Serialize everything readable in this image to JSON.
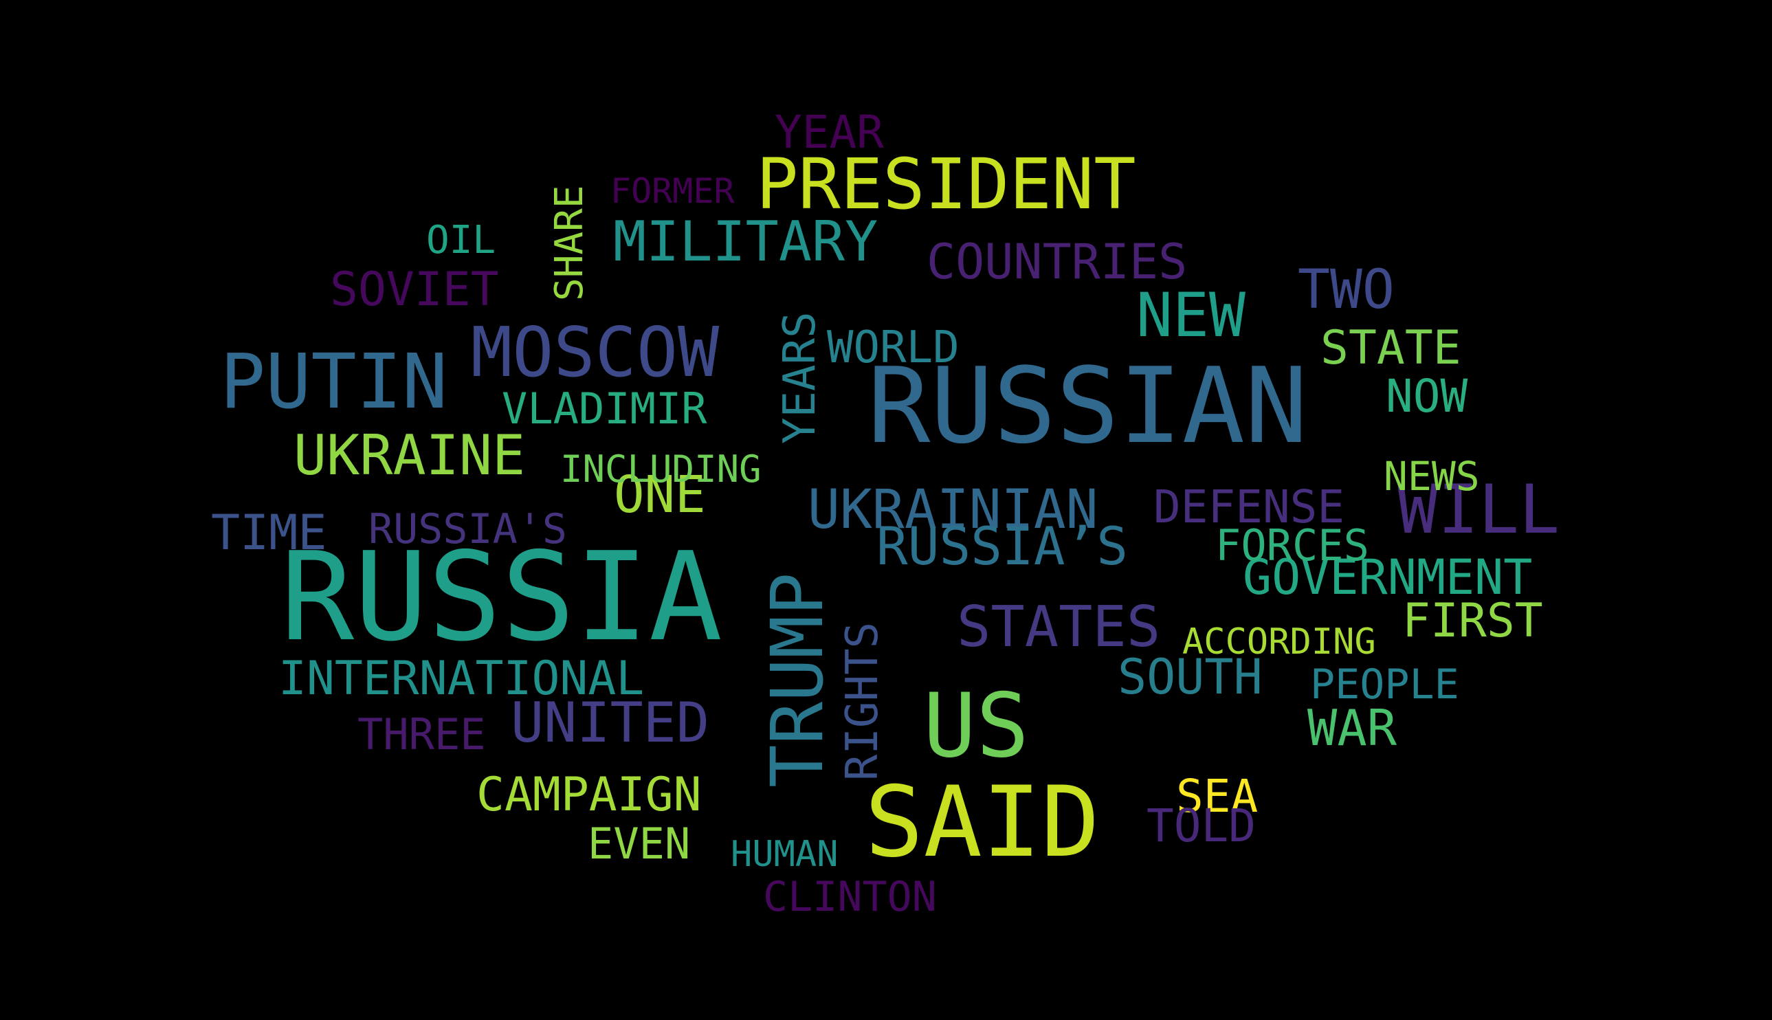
{
  "palette": {
    "background": "#000000",
    "dark_purple": "#440154",
    "purple": "#48186a",
    "indigo": "#472d7b",
    "blue_violet": "#3e4989",
    "slate_blue": "#31688e",
    "teal_blue": "#26828e",
    "teal": "#1f9e89",
    "green_teal": "#35b779",
    "green": "#6ece58",
    "lime": "#b5de2b",
    "yellow": "#fde725"
  },
  "words": [
    {
      "text": "RUSSIAN",
      "color": "#31688e",
      "orientation": "horizontal"
    },
    {
      "text": "RUSSIA",
      "color": "#1f9e89",
      "orientation": "horizontal"
    },
    {
      "text": "SAID",
      "color": "#c8e020",
      "orientation": "horizontal"
    },
    {
      "text": "TRUMP",
      "color": "#2a788e",
      "orientation": "vertical"
    },
    {
      "text": "US",
      "color": "#6ece58",
      "orientation": "horizontal"
    },
    {
      "text": "PUTIN",
      "color": "#31688e",
      "orientation": "horizontal"
    },
    {
      "text": "MOSCOW",
      "color": "#3e4989",
      "orientation": "horizontal"
    },
    {
      "text": "PRESIDENT",
      "color": "#c8e020",
      "orientation": "horizontal"
    },
    {
      "text": "NEW",
      "color": "#1f9e89",
      "orientation": "horizontal"
    },
    {
      "text": "WILL",
      "color": "#472d7b",
      "orientation": "horizontal"
    },
    {
      "text": "MILITARY",
      "color": "#21918c",
      "orientation": "horizontal"
    },
    {
      "text": "UKRAINE",
      "color": "#90d743",
      "orientation": "horizontal"
    },
    {
      "text": "STATES",
      "color": "#443983",
      "orientation": "horizontal"
    },
    {
      "text": "UNITED",
      "color": "#433e85",
      "orientation": "horizontal"
    },
    {
      "text": "UKRAINIAN",
      "color": "#31688e",
      "orientation": "horizontal"
    },
    {
      "text": "RUSSIA’S",
      "color": "#2c728e",
      "orientation": "horizontal"
    },
    {
      "text": "TWO",
      "color": "#3e4989",
      "orientation": "horizontal"
    },
    {
      "text": "ONE",
      "color": "#a0da39",
      "orientation": "horizontal"
    },
    {
      "text": "COUNTRIES",
      "color": "#482173",
      "orientation": "horizontal"
    },
    {
      "text": "GOVERNMENT",
      "color": "#22a884",
      "orientation": "horizontal"
    },
    {
      "text": "YEARS",
      "color": "#26828e",
      "orientation": "vertical"
    },
    {
      "text": "SOVIET",
      "color": "#46085c",
      "orientation": "horizontal"
    },
    {
      "text": "STATE",
      "color": "#7ad151",
      "orientation": "horizontal"
    },
    {
      "text": "SOUTH",
      "color": "#277f8e",
      "orientation": "horizontal"
    },
    {
      "text": "WAR",
      "color": "#4ac16d",
      "orientation": "horizontal"
    },
    {
      "text": "RIGHTS",
      "color": "#3b528b",
      "orientation": "vertical"
    },
    {
      "text": "FIRST",
      "color": "#8fd744",
      "orientation": "horizontal"
    },
    {
      "text": "CAMPAIGN",
      "color": "#a5db36",
      "orientation": "horizontal"
    },
    {
      "text": "INTERNATIONAL",
      "color": "#21918c",
      "orientation": "horizontal"
    },
    {
      "text": "DEFENSE",
      "color": "#472f7d",
      "orientation": "horizontal"
    },
    {
      "text": "TIME",
      "color": "#3b528b",
      "orientation": "horizontal"
    },
    {
      "text": "VLADIMIR",
      "color": "#27ad81",
      "orientation": "horizontal"
    },
    {
      "text": "NOW",
      "color": "#29af7f",
      "orientation": "horizontal"
    },
    {
      "text": "YEAR",
      "color": "#440154",
      "orientation": "horizontal"
    },
    {
      "text": "FORCES",
      "color": "#2db27d",
      "orientation": "horizontal"
    },
    {
      "text": "WORLD",
      "color": "#26828e",
      "orientation": "horizontal"
    },
    {
      "text": "SEA",
      "color": "#fde725",
      "orientation": "horizontal"
    },
    {
      "text": "EVEN",
      "color": "#8fd744",
      "orientation": "horizontal"
    },
    {
      "text": "THREE",
      "color": "#481a6c",
      "orientation": "horizontal"
    },
    {
      "text": "TOLD",
      "color": "#482878",
      "orientation": "horizontal"
    },
    {
      "text": "PEOPLE",
      "color": "#26828e",
      "orientation": "horizontal"
    },
    {
      "text": "CLINTON",
      "color": "#46085c",
      "orientation": "horizontal"
    },
    {
      "text": "RUSSIA'S",
      "color": "#46337e",
      "orientation": "horizontal"
    },
    {
      "text": "SHARE",
      "color": "#95d840",
      "orientation": "vertical"
    },
    {
      "text": "OIL",
      "color": "#20a486",
      "orientation": "horizontal"
    },
    {
      "text": "NEWS",
      "color": "#86d549",
      "orientation": "horizontal"
    },
    {
      "text": "INCLUDING",
      "color": "#6ece58",
      "orientation": "horizontal"
    },
    {
      "text": "ACCORDING",
      "color": "#a8db34",
      "orientation": "horizontal"
    },
    {
      "text": "HUMAN",
      "color": "#21918c",
      "orientation": "horizontal"
    },
    {
      "text": "FORMER",
      "color": "#440154",
      "orientation": "horizontal"
    }
  ]
}
